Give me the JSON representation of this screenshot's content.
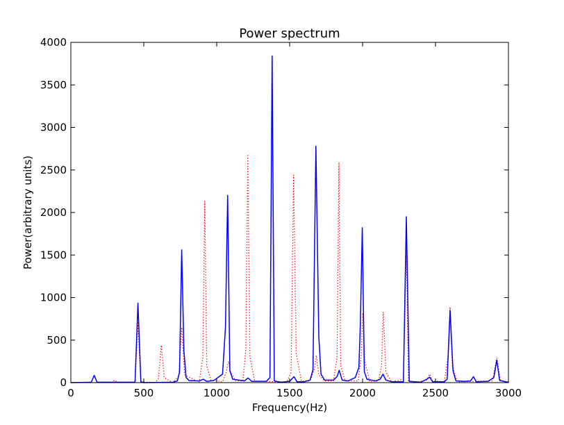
{
  "chart_data": {
    "type": "line",
    "title": "Power spectrum",
    "xlabel": "Frequency(Hz)",
    "ylabel": "Power(arbitrary units)",
    "xlim": [
      0,
      3000
    ],
    "ylim": [
      0,
      4000
    ],
    "xticks": [
      0,
      500,
      1000,
      1500,
      2000,
      2500,
      3000
    ],
    "yticks": [
      0,
      500,
      1000,
      1500,
      2000,
      2500,
      3000,
      3500,
      4000
    ],
    "grid": false,
    "series": [
      {
        "color": "#0000ff",
        "style": "solid",
        "points": [
          [
            0,
            0
          ],
          [
            140,
            5
          ],
          [
            160,
            85
          ],
          [
            180,
            5
          ],
          [
            440,
            5
          ],
          [
            460,
            935
          ],
          [
            480,
            10
          ],
          [
            500,
            0
          ],
          [
            700,
            5
          ],
          [
            730,
            20
          ],
          [
            745,
            120
          ],
          [
            760,
            1560
          ],
          [
            775,
            380
          ],
          [
            790,
            60
          ],
          [
            810,
            25
          ],
          [
            880,
            20
          ],
          [
            910,
            40
          ],
          [
            930,
            15
          ],
          [
            980,
            25
          ],
          [
            1040,
            100
          ],
          [
            1060,
            650
          ],
          [
            1075,
            2200
          ],
          [
            1090,
            140
          ],
          [
            1110,
            40
          ],
          [
            1190,
            20
          ],
          [
            1215,
            55
          ],
          [
            1240,
            15
          ],
          [
            1340,
            15
          ],
          [
            1365,
            60
          ],
          [
            1380,
            3840
          ],
          [
            1395,
            20
          ],
          [
            1440,
            5
          ],
          [
            1500,
            15
          ],
          [
            1530,
            70
          ],
          [
            1550,
            10
          ],
          [
            1600,
            10
          ],
          [
            1640,
            30
          ],
          [
            1660,
            150
          ],
          [
            1680,
            2780
          ],
          [
            1700,
            540
          ],
          [
            1715,
            100
          ],
          [
            1740,
            30
          ],
          [
            1800,
            30
          ],
          [
            1825,
            70
          ],
          [
            1840,
            145
          ],
          [
            1860,
            30
          ],
          [
            1900,
            20
          ],
          [
            1950,
            60
          ],
          [
            1975,
            180
          ],
          [
            1985,
            700
          ],
          [
            1998,
            1820
          ],
          [
            2012,
            130
          ],
          [
            2030,
            40
          ],
          [
            2090,
            20
          ],
          [
            2120,
            40
          ],
          [
            2140,
            100
          ],
          [
            2160,
            30
          ],
          [
            2200,
            10
          ],
          [
            2280,
            10
          ],
          [
            2300,
            1950
          ],
          [
            2320,
            15
          ],
          [
            2400,
            5
          ],
          [
            2440,
            40
          ],
          [
            2460,
            65
          ],
          [
            2480,
            10
          ],
          [
            2560,
            10
          ],
          [
            2580,
            40
          ],
          [
            2600,
            850
          ],
          [
            2620,
            140
          ],
          [
            2640,
            20
          ],
          [
            2700,
            15
          ],
          [
            2740,
            20
          ],
          [
            2760,
            70
          ],
          [
            2780,
            10
          ],
          [
            2860,
            15
          ],
          [
            2900,
            60
          ],
          [
            2920,
            265
          ],
          [
            2940,
            25
          ],
          [
            2980,
            10
          ],
          [
            3000,
            5
          ]
        ]
      },
      {
        "color": "#ff0000",
        "style": "dotted",
        "points": [
          [
            0,
            0
          ],
          [
            280,
            0
          ],
          [
            300,
            30
          ],
          [
            320,
            0
          ],
          [
            440,
            5
          ],
          [
            460,
            700
          ],
          [
            480,
            10
          ],
          [
            580,
            0
          ],
          [
            600,
            50
          ],
          [
            620,
            440
          ],
          [
            640,
            60
          ],
          [
            700,
            0
          ],
          [
            740,
            80
          ],
          [
            760,
            650
          ],
          [
            780,
            90
          ],
          [
            880,
            5
          ],
          [
            905,
            300
          ],
          [
            918,
            2130
          ],
          [
            932,
            200
          ],
          [
            960,
            30
          ],
          [
            1040,
            10
          ],
          [
            1065,
            120
          ],
          [
            1080,
            250
          ],
          [
            1095,
            130
          ],
          [
            1130,
            20
          ],
          [
            1180,
            20
          ],
          [
            1200,
            400
          ],
          [
            1213,
            2670
          ],
          [
            1228,
            300
          ],
          [
            1260,
            20
          ],
          [
            1480,
            5
          ],
          [
            1510,
            120
          ],
          [
            1527,
            2440
          ],
          [
            1545,
            350
          ],
          [
            1580,
            20
          ],
          [
            1640,
            20
          ],
          [
            1670,
            160
          ],
          [
            1683,
            320
          ],
          [
            1700,
            90
          ],
          [
            1740,
            20
          ],
          [
            1800,
            20
          ],
          [
            1825,
            300
          ],
          [
            1838,
            2590
          ],
          [
            1850,
            200
          ],
          [
            1880,
            20
          ],
          [
            1970,
            20
          ],
          [
            1990,
            300
          ],
          [
            2002,
            820
          ],
          [
            2015,
            250
          ],
          [
            2050,
            10
          ],
          [
            2110,
            20
          ],
          [
            2130,
            200
          ],
          [
            2142,
            830
          ],
          [
            2160,
            120
          ],
          [
            2200,
            10
          ],
          [
            2280,
            40
          ],
          [
            2300,
            1560
          ],
          [
            2315,
            20
          ],
          [
            2350,
            0
          ],
          [
            2440,
            30
          ],
          [
            2460,
            100
          ],
          [
            2480,
            20
          ],
          [
            2560,
            10
          ],
          [
            2585,
            300
          ],
          [
            2600,
            890
          ],
          [
            2615,
            200
          ],
          [
            2650,
            10
          ],
          [
            2890,
            20
          ],
          [
            2920,
            290
          ],
          [
            2945,
            30
          ],
          [
            3000,
            5
          ]
        ]
      }
    ]
  }
}
